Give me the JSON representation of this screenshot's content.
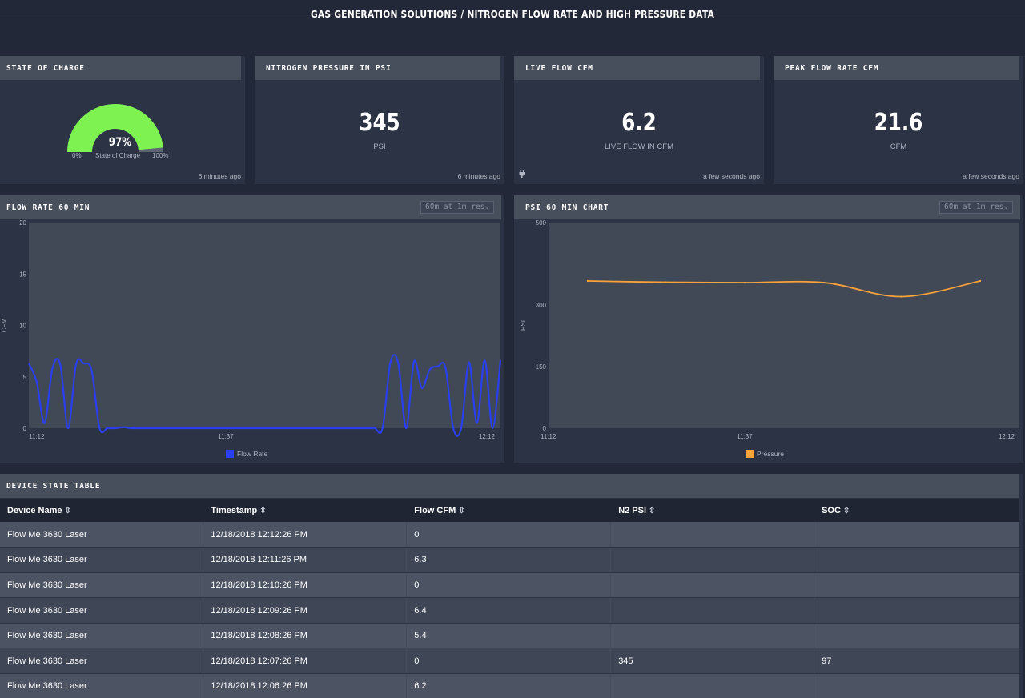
{
  "page": {
    "title": "GAS GENERATION SOLUTIONS / NITROGEN FLOW RATE AND HIGH PRESSURE DATA"
  },
  "cards": {
    "soc": {
      "title": "STATE OF CHARGE",
      "value": "97%",
      "fraction": 0.97,
      "min_label": "0%",
      "max_label": "100%",
      "caption": "State of Charge",
      "time": "6 minutes ago",
      "color": "#7ef251"
    },
    "pressure": {
      "title": "NITROGEN PRESSURE IN PSI",
      "value": "345",
      "unit": "PSI",
      "time": "6 minutes ago"
    },
    "live_flow": {
      "title": "LIVE FLOW CFM",
      "value": "6.2",
      "unit": "LIVE FLOW IN CFM",
      "time": "a few seconds ago",
      "icon": "plug-icon"
    },
    "peak_flow": {
      "title": "PEAK FLOW RATE CFM",
      "value": "21.6",
      "unit": "CFM",
      "time": "a few seconds ago"
    }
  },
  "flow_panel": {
    "title": "FLOW RATE 60 MIN",
    "badge": "60m at 1m res."
  },
  "psi_panel": {
    "title": "PSI 60 MIN CHART",
    "badge": "60m at 1m res."
  },
  "chart_data": [
    {
      "type": "line",
      "title": "FLOW RATE 60 MIN",
      "xlabel": "",
      "ylabel": "CFM",
      "ylim": [
        0,
        20
      ],
      "yticks": [
        0,
        5,
        10,
        15,
        20
      ],
      "xticks": [
        "11:12",
        "11:37",
        "12:12"
      ],
      "x": [
        0,
        1,
        2,
        3,
        4,
        5,
        6,
        7,
        8,
        9,
        10,
        11,
        12,
        13,
        14,
        15,
        16,
        17,
        18,
        19,
        20,
        21,
        22,
        23,
        24,
        25,
        26,
        27,
        28,
        29,
        30,
        31,
        32,
        33,
        34,
        35,
        36,
        37,
        38,
        39,
        40,
        41,
        42,
        43,
        44,
        45,
        46,
        47,
        48,
        49,
        50,
        51,
        52,
        53,
        54,
        55,
        56,
        57,
        58,
        59,
        60
      ],
      "series": [
        {
          "name": "Flow Rate",
          "color": "#2a3ff0",
          "values": [
            6.3,
            4.5,
            0.5,
            5.8,
            6.2,
            0,
            6.2,
            6.3,
            5.6,
            0,
            0,
            0,
            0.1,
            0,
            0,
            0,
            0,
            0,
            0,
            0,
            0,
            0,
            0,
            0,
            0,
            0,
            0,
            0,
            0,
            0,
            0,
            0,
            0,
            0,
            0,
            0,
            0,
            0,
            0,
            0,
            0,
            0,
            0,
            0,
            0,
            0,
            6.4,
            6.3,
            0,
            6.5,
            3.9,
            5.7,
            6.0,
            5.9,
            0,
            0,
            6.4,
            0.5,
            6.6,
            0,
            6.6
          ]
        }
      ]
    },
    {
      "type": "line",
      "title": "PSI 60 MIN CHART",
      "xlabel": "",
      "ylabel": "PSI",
      "ylim": [
        0,
        500
      ],
      "yticks": [
        0,
        150,
        300,
        500
      ],
      "xticks": [
        "11:12",
        "11:37",
        "12:12"
      ],
      "x": [
        0,
        10,
        20,
        30,
        40,
        50
      ],
      "series": [
        {
          "name": "Pressure",
          "color": "#f7a23b",
          "values": [
            358,
            355,
            354,
            354,
            320,
            358
          ]
        }
      ]
    }
  ],
  "table": {
    "title": "DEVICE STATE TABLE",
    "columns": [
      "Device Name",
      "Timestamp",
      "Flow CFM",
      "N2 PSI",
      "SOC"
    ],
    "rows": [
      [
        "Flow Me 3630 Laser",
        "12/18/2018 12:12:26 PM",
        "0",
        "",
        ""
      ],
      [
        "Flow Me 3630 Laser",
        "12/18/2018 12:11:26 PM",
        "6.3",
        "",
        ""
      ],
      [
        "Flow Me 3630 Laser",
        "12/18/2018 12:10:26 PM",
        "0",
        "",
        ""
      ],
      [
        "Flow Me 3630 Laser",
        "12/18/2018 12:09:26 PM",
        "6.4",
        "",
        ""
      ],
      [
        "Flow Me 3630 Laser",
        "12/18/2018 12:08:26 PM",
        "5.4",
        "",
        ""
      ],
      [
        "Flow Me 3630 Laser",
        "12/18/2018 12:07:26 PM",
        "0",
        "345",
        "97"
      ],
      [
        "Flow Me 3630 Laser",
        "12/18/2018 12:06:26 PM",
        "6.2",
        "",
        ""
      ]
    ]
  }
}
